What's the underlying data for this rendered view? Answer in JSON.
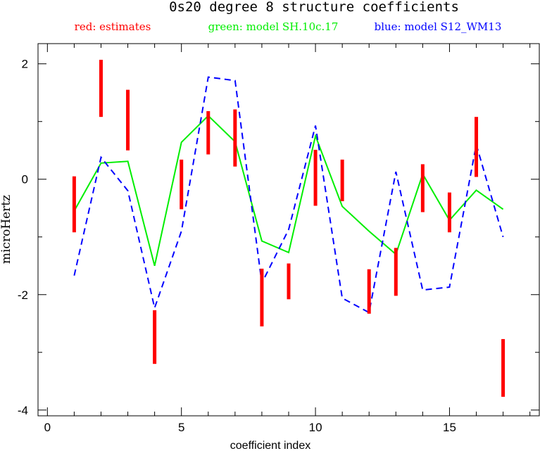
{
  "chart_data": {
    "type": "line",
    "title": "0s20 degree 8 structure coefficients",
    "legend": [
      {
        "label": "red: estimates",
        "color": "#ff0000"
      },
      {
        "label": "green: model SH.10c.17",
        "color": "#00ee00"
      },
      {
        "label": "blue: model S12_WM13",
        "color": "#0000ff"
      }
    ],
    "xlabel": "coefficient index",
    "ylabel": "microHertz",
    "xlim": [
      -0.35,
      18.35
    ],
    "ylim": [
      -4.1,
      2.35
    ],
    "xticks_major": [
      0,
      5,
      10,
      15
    ],
    "xticks_minor": [
      1,
      2,
      3,
      4,
      6,
      7,
      8,
      9,
      11,
      12,
      13,
      14,
      16,
      17,
      18
    ],
    "yticks_major": [
      2,
      0,
      -2,
      -4
    ],
    "yticks_minor": [
      1,
      -1,
      -3
    ],
    "estimates": {
      "name": "red: estimates",
      "x": [
        1,
        2,
        3,
        4,
        5,
        6,
        7,
        8,
        9,
        10,
        11,
        12,
        13,
        14,
        15,
        16,
        17
      ],
      "low": [
        -0.92,
        1.08,
        0.5,
        -3.2,
        -0.52,
        0.43,
        0.22,
        -2.55,
        -2.08,
        -0.46,
        -0.38,
        -2.33,
        -2.02,
        -0.57,
        -0.92,
        0.04,
        -3.77
      ],
      "high": [
        0.05,
        2.07,
        1.55,
        -2.27,
        0.34,
        1.18,
        1.21,
        -1.55,
        -1.46,
        0.51,
        0.34,
        -1.56,
        -1.19,
        0.26,
        -0.23,
        1.08,
        -2.77
      ]
    },
    "series": [
      {
        "name": "green: model SH.10c.17",
        "color": "#00ee00",
        "style": "solid",
        "x": [
          1,
          2,
          3,
          4,
          5,
          6,
          7,
          8,
          9,
          10,
          11,
          12,
          13,
          14,
          15,
          16,
          17
        ],
        "values": [
          -0.55,
          0.28,
          0.31,
          -1.5,
          0.64,
          1.1,
          0.65,
          -1.07,
          -1.27,
          0.75,
          -0.47,
          -0.9,
          -1.3,
          0.09,
          -0.71,
          -0.19,
          -0.52
        ]
      },
      {
        "name": "blue: model S12_WM13",
        "color": "#0000ff",
        "style": "dashed",
        "x": [
          1,
          2,
          3,
          4,
          5,
          6,
          7,
          8,
          9,
          10,
          11,
          12,
          13,
          14,
          15,
          16,
          17
        ],
        "values": [
          -1.67,
          0.38,
          -0.2,
          -2.23,
          -0.9,
          1.77,
          1.71,
          -1.8,
          -0.87,
          0.93,
          -2.06,
          -2.31,
          0.13,
          -1.92,
          -1.87,
          0.6,
          -1.0
        ]
      }
    ],
    "grid": false
  }
}
